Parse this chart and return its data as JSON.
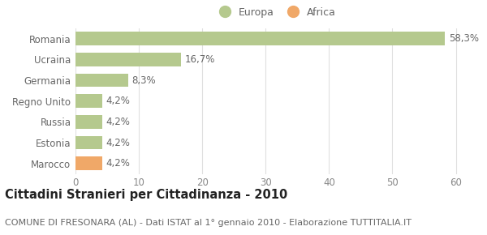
{
  "categories": [
    "Marocco",
    "Estonia",
    "Russia",
    "Regno Unito",
    "Germania",
    "Ucraina",
    "Romania"
  ],
  "values": [
    4.2,
    4.2,
    4.2,
    4.2,
    8.3,
    16.7,
    58.3
  ],
  "labels": [
    "4,2%",
    "4,2%",
    "4,2%",
    "4,2%",
    "8,3%",
    "16,7%",
    "58,3%"
  ],
  "colors": [
    "#f0a868",
    "#b5c98e",
    "#b5c98e",
    "#b5c98e",
    "#b5c98e",
    "#b5c98e",
    "#b5c98e"
  ],
  "europa_color": "#b5c98e",
  "africa_color": "#f0a868",
  "xlim": [
    0,
    63
  ],
  "xticks": [
    0,
    10,
    20,
    30,
    40,
    50,
    60
  ],
  "title": "Cittadini Stranieri per Cittadinanza - 2010",
  "subtitle": "COMUNE DI FRESONARA (AL) - Dati ISTAT al 1° gennaio 2010 - Elaborazione TUTTITALIA.IT",
  "legend_europa": "Europa",
  "legend_africa": "Africa",
  "background_color": "#ffffff",
  "grid_color": "#e0e0e0",
  "bar_height": 0.65,
  "label_fontsize": 8.5,
  "tick_fontsize": 8.5,
  "title_fontsize": 10.5,
  "subtitle_fontsize": 8
}
